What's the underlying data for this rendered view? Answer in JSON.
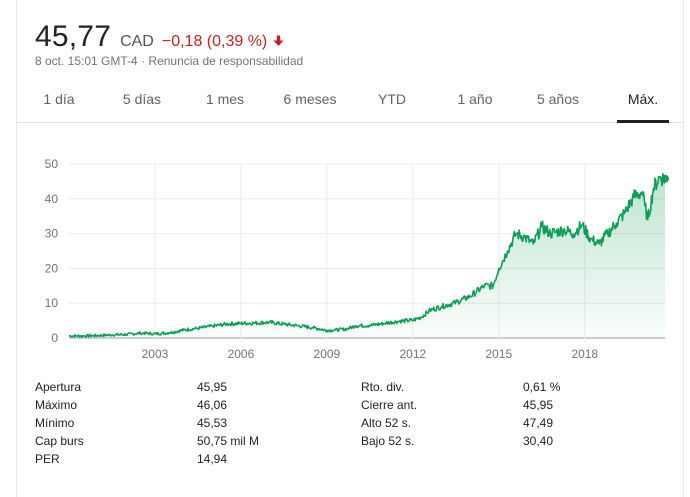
{
  "quote": {
    "price": "45,77",
    "currency": "CAD",
    "change": "−0,18 (0,39 %)",
    "timestamp": "8 oct. 15:01 GMT-4",
    "separator": "·",
    "disclaimer": "Renuncia de responsabilidad",
    "change_color": "#c5221f",
    "direction_icon": "arrow-down-icon"
  },
  "tabs": [
    {
      "label": "1 día",
      "active": false
    },
    {
      "label": "5 días",
      "active": false
    },
    {
      "label": "1 mes",
      "active": false
    },
    {
      "label": "6 meses",
      "active": false
    },
    {
      "label": "YTD",
      "active": false
    },
    {
      "label": "1 año",
      "active": false
    },
    {
      "label": "5 años",
      "active": false
    },
    {
      "label": "Máx.",
      "active": true
    }
  ],
  "chart_data": {
    "type": "area",
    "ylim": [
      0,
      50
    ],
    "yticks": [
      "0",
      "10",
      "20",
      "30",
      "40",
      "50"
    ],
    "xlim": [
      2000.0,
      2020.8
    ],
    "xticks": [
      {
        "value": 2003,
        "label": "2003"
      },
      {
        "value": 2006,
        "label": "2006"
      },
      {
        "value": 2009,
        "label": "2009"
      },
      {
        "value": 2012,
        "label": "2012"
      },
      {
        "value": 2015,
        "label": "2015"
      },
      {
        "value": 2018,
        "label": "2018"
      }
    ],
    "line_color": "#0f9d58",
    "fill_color": "#0f9d58",
    "grid": true,
    "series": [
      {
        "x": [
          2000.0,
          2000.5,
          2001.0,
          2001.5,
          2002.0,
          2002.5,
          2003.0,
          2003.5,
          2004.0,
          2004.5,
          2005.0,
          2005.5,
          2006.0,
          2006.5,
          2007.0,
          2007.5,
          2008.0,
          2008.5,
          2009.0,
          2009.3,
          2009.7,
          2010.0,
          2010.5,
          2011.0,
          2011.5,
          2012.0,
          2012.3,
          2012.6,
          2013.0,
          2013.5,
          2014.0,
          2014.5,
          2014.8,
          2015.0,
          2015.3,
          2015.6,
          2015.9,
          2016.2,
          2016.5,
          2016.8,
          2017.0,
          2017.3,
          2017.6,
          2017.9,
          2018.2,
          2018.5,
          2018.8,
          2019.1,
          2019.4,
          2019.7,
          2020.0,
          2020.1,
          2020.2,
          2020.4,
          2020.6,
          2020.8
        ],
        "y": [
          0.6,
          0.6,
          0.7,
          0.9,
          1.0,
          1.4,
          1.2,
          1.5,
          2.3,
          2.8,
          3.4,
          4.0,
          4.2,
          4.3,
          4.5,
          4.0,
          3.5,
          3.0,
          2.2,
          2.3,
          2.6,
          3.5,
          3.6,
          4.2,
          4.8,
          5.1,
          6.0,
          8.0,
          9.0,
          10.2,
          12.0,
          15.0,
          15.0,
          20.0,
          25.0,
          30.0,
          29.0,
          27.0,
          32.0,
          30.0,
          30.5,
          31.0,
          30.0,
          32.5,
          28.5,
          27.0,
          30.0,
          33.0,
          36.0,
          40.5,
          42.0,
          38.0,
          34.0,
          43.0,
          46.2,
          45.77
        ]
      }
    ],
    "last_point_marker": true
  },
  "stats": {
    "left": [
      {
        "label": "Apertura",
        "value": "45,95"
      },
      {
        "label": "Máximo",
        "value": "46,06"
      },
      {
        "label": "Mínimo",
        "value": "45,53"
      },
      {
        "label": "Cap burs",
        "value": "50,75 mil M"
      },
      {
        "label": "PER",
        "value": "14,94"
      }
    ],
    "right": [
      {
        "label": "Rto. div.",
        "value": "0,61 %"
      },
      {
        "label": "Cierre ant.",
        "value": "45,95"
      },
      {
        "label": "Alto 52 s.",
        "value": "47,49"
      },
      {
        "label": "Bajo 52 s.",
        "value": "30,40"
      }
    ]
  }
}
